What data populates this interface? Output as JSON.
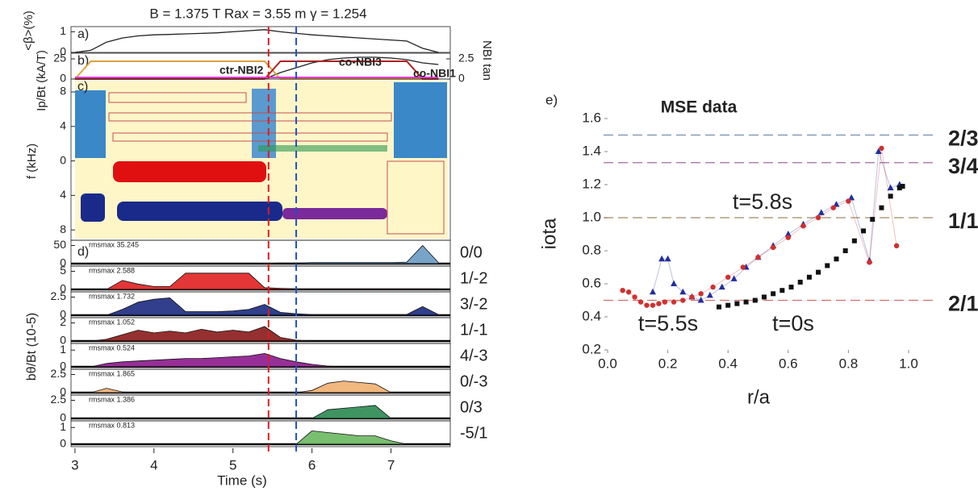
{
  "chart_data": [
    {
      "type": "timetrace",
      "title": "B = 1.375 T  Rax = 3.55 m  γ = 1.254",
      "xlabel": "Time (s)",
      "xlim": [
        2.95,
        7.75
      ],
      "xticks": [
        3,
        4,
        5,
        6,
        7
      ],
      "x": [
        3,
        3.2,
        3.4,
        3.6,
        3.8,
        4,
        4.2,
        4.4,
        4.6,
        4.8,
        5,
        5.2,
        5.4,
        5.6,
        5.8,
        6,
        6.2,
        6.4,
        6.6,
        6.8,
        7,
        7.2,
        7.4,
        7.6
      ],
      "markers": [
        {
          "value": 5.45,
          "color": "#d62020"
        },
        {
          "value": 5.8,
          "color": "#2050c0"
        }
      ],
      "panels": [
        {
          "label": "a)",
          "ylabel": "<β>(%)",
          "ylim": [
            0,
            1.25
          ],
          "yticks": [
            0,
            1
          ],
          "series": [
            {
              "color": "#222222",
              "values": [
                0,
                0.1,
                0.5,
                0.7,
                0.8,
                0.85,
                0.87,
                0.9,
                0.92,
                0.95,
                1,
                1.05,
                1.1,
                1,
                0.92,
                0.85,
                0.8,
                0.75,
                0.7,
                0.65,
                0.6,
                0.55,
                0.2,
                0
              ]
            }
          ]
        },
        {
          "label": "b)",
          "ylabel": "Ip/Bt (kA/T)",
          "ylim": [
            0,
            32
          ],
          "yticks": [
            0,
            25
          ],
          "y2label": "NBI tan",
          "y2lim": [
            0,
            3.2
          ],
          "y2ticks": [
            0,
            2.5
          ],
          "series": [
            {
              "color": "#222222",
              "values": [
                0,
                0,
                0,
                0,
                0,
                0,
                0,
                0,
                0,
                0,
                0,
                0,
                0,
                8,
                14,
                20,
                24,
                26,
                27,
                27,
                26,
                24,
                20,
                18
              ]
            },
            {
              "name": "ctr-NBI2",
              "color": "#e0a040",
              "axis": "y2",
              "values": [
                0,
                2.2,
                2.2,
                2.2,
                2.2,
                2.2,
                2.2,
                2.2,
                2.2,
                2.2,
                2.2,
                2.2,
                2.2,
                0,
                0,
                0,
                0,
                0,
                0,
                0,
                0,
                0,
                0,
                0
              ]
            },
            {
              "name": "co-NBI3",
              "color": "#b02020",
              "axis": "y2",
              "values": [
                0,
                0,
                0,
                0,
                0,
                0,
                0,
                0,
                0,
                0,
                0,
                0,
                0,
                2.2,
                2.2,
                2.2,
                2.2,
                2.2,
                2.2,
                2.2,
                2.2,
                2.2,
                0,
                0
              ]
            },
            {
              "name": "co-NBI1",
              "color": "#e040d0",
              "axis": "y2",
              "values": [
                0.2,
                0.2,
                0.2,
                0.2,
                0.2,
                0.2,
                0.2,
                0.2,
                0.2,
                0.2,
                0.2,
                0.2,
                0.2,
                0.2,
                0.2,
                0.2,
                0.2,
                0.2,
                0.2,
                0.2,
                0.2,
                0.2,
                0.2,
                0.2
              ]
            }
          ]
        },
        {
          "label": "c)",
          "ylabel": "f (kHz)",
          "ylim": [
            -9.2,
            9.5
          ],
          "yticks": [
            8,
            4,
            0,
            {
              "value": -4,
              "label": "4"
            },
            {
              "value": -8,
              "label": "8"
            }
          ]
        },
        {
          "label": "d)",
          "ylabel": "bθ/Bt (10-5)",
          "modes": [
            {
              "name": "0/0",
              "color": "#6a9ac4",
              "rmsmax": "rmsmax 35.245",
              "ylim": [
                0,
                60
              ],
              "yticks": [
                0,
                50
              ],
              "values": [
                0,
                0,
                0,
                0,
                0,
                0,
                0,
                0,
                0,
                0,
                0,
                0,
                1,
                2,
                2,
                3,
                3,
                3,
                3,
                3,
                3,
                4,
                50,
                3
              ]
            },
            {
              "name": "1/-2",
              "color": "#e02020",
              "rmsmax": "rmsmax 2.588",
              "ylim": [
                0,
                6
              ],
              "yticks": [
                0,
                5
              ],
              "values": [
                0,
                0,
                0,
                2.5,
                1.5,
                0.8,
                0.8,
                4.5,
                4.5,
                4.5,
                4.5,
                4.5,
                0.5,
                0.3,
                0.2,
                0.2,
                0.2,
                0.2,
                0.2,
                0.2,
                0.2,
                0.2,
                0.2,
                0.2
              ]
            },
            {
              "name": "3/-2",
              "color": "#1b2a80",
              "rmsmax": "rmsmax 1.732",
              "ylim": [
                0,
                3
              ],
              "yticks": [
                0,
                2.5
              ],
              "values": [
                0,
                0,
                0,
                0.8,
                1.8,
                2.2,
                2.4,
                0.5,
                0.5,
                0.5,
                0.6,
                0.8,
                1.5,
                0.4,
                0.2,
                0.1,
                0.1,
                0.1,
                0.1,
                0.1,
                0.1,
                0.1,
                1.2,
                0.1
              ]
            },
            {
              "name": "1/-1",
              "color": "#8b1a1a",
              "rmsmax": "rmsmax 1.052",
              "ylim": [
                0,
                2.4
              ],
              "yticks": [
                0,
                2
              ],
              "values": [
                0,
                0,
                0.2,
                0.7,
                1.2,
                0.9,
                1.1,
                0.9,
                1.3,
                1,
                1.2,
                1,
                1.6,
                0.4,
                0.1,
                0,
                0,
                0,
                0,
                0,
                0,
                0,
                0,
                0
              ]
            },
            {
              "name": "4/-3",
              "color": "#8b1a8b",
              "rmsmax": "rmsmax 0.524",
              "ylim": [
                0,
                1.3
              ],
              "yticks": [
                0,
                1
              ],
              "values": [
                0,
                0,
                0.2,
                0.3,
                0.35,
                0.4,
                0.45,
                0.5,
                0.5,
                0.55,
                0.6,
                0.65,
                0.8,
                0.5,
                0.3,
                0.15,
                0.05,
                0,
                0,
                0,
                0,
                0,
                0,
                0
              ]
            },
            {
              "name": "0/-3",
              "color": "#f0b070",
              "rmsmax": "rmsmax 1.865",
              "ylim": [
                0,
                3
              ],
              "yticks": [
                0,
                2.5
              ],
              "values": [
                0,
                0,
                0.6,
                0.1,
                0,
                0,
                0,
                0,
                0,
                0,
                0,
                0,
                0,
                0,
                0,
                0.3,
                1.3,
                1.6,
                1.4,
                1.2,
                0,
                0,
                0,
                0
              ]
            },
            {
              "name": "0/3",
              "color": "#2a8a50",
              "rmsmax": "rmsmax 1.386",
              "ylim": [
                0,
                3
              ],
              "yticks": [
                0,
                2.5
              ],
              "values": [
                0,
                0,
                0,
                0,
                0,
                0,
                0,
                0,
                0,
                0,
                0,
                0,
                0,
                0,
                0,
                0,
                1.2,
                1.4,
                1.6,
                1.8,
                0,
                0,
                0,
                0
              ]
            },
            {
              "name": "-5/1",
              "color": "#6ab860",
              "rmsmax": "rmsmax 0.813",
              "ylim": [
                0,
                1.3
              ],
              "yticks": [
                0,
                1
              ],
              "values": [
                0,
                0,
                0,
                0,
                0,
                0,
                0,
                0,
                0,
                0,
                0,
                0,
                0,
                0,
                0,
                0.8,
                0.7,
                0.6,
                0.5,
                0.5,
                0.2,
                0,
                0,
                0
              ]
            }
          ]
        }
      ]
    },
    {
      "type": "scatter",
      "label": "e)",
      "title": "MSE data",
      "xlabel": "r/a",
      "ylabel": "iota",
      "xlim": [
        0,
        1
      ],
      "ylim": [
        0.2,
        1.6
      ],
      "xticks": [
        {
          "value": 0,
          "label": "0.0"
        },
        0.2,
        0.4,
        0.6,
        0.8,
        {
          "value": 1,
          "label": "1.0"
        }
      ],
      "yticks": [
        0.2,
        0.4,
        0.6,
        0.8,
        {
          "value": 1,
          "label": "1.0"
        },
        1.2,
        1.4,
        1.6
      ],
      "reference_lines": [
        {
          "value": 1.5,
          "label": "2/3",
          "color": "#3d5f8a"
        },
        {
          "value": 1.333,
          "label": "3/4",
          "color": "#7a2a7a"
        },
        {
          "value": 1,
          "label": "1/1",
          "color": "#7a5a20"
        },
        {
          "value": 0.5,
          "label": "2/1",
          "color": "#c03030"
        }
      ],
      "series": [
        {
          "name": "t=5.8s",
          "color": "#2030a0",
          "marker": "triangle",
          "x": [
            0.15,
            0.18,
            0.2,
            0.22,
            0.25,
            0.28,
            0.31,
            0.34,
            0.38,
            0.42,
            0.46,
            0.5,
            0.55,
            0.6,
            0.65,
            0.71,
            0.76,
            0.81,
            0.87,
            0.9,
            0.94,
            0.97
          ],
          "y": [
            0.55,
            0.75,
            0.75,
            0.6,
            0.55,
            0.52,
            0.5,
            0.53,
            0.58,
            0.63,
            0.7,
            0.76,
            0.83,
            0.9,
            0.96,
            1.03,
            1.08,
            1.12,
            0.74,
            1.4,
            1.18,
            1.2
          ]
        },
        {
          "name": "t=5.5s",
          "color": "#d03030",
          "marker": "circle",
          "x": [
            0.05,
            0.07,
            0.09,
            0.11,
            0.13,
            0.15,
            0.17,
            0.19,
            0.22,
            0.25,
            0.28,
            0.31,
            0.35,
            0.4,
            0.45,
            0.5,
            0.55,
            0.6,
            0.65,
            0.7,
            0.75,
            0.8,
            0.87,
            0.91,
            0.96
          ],
          "y": [
            0.56,
            0.55,
            0.52,
            0.49,
            0.47,
            0.47,
            0.48,
            0.49,
            0.49,
            0.5,
            0.52,
            0.54,
            0.58,
            0.64,
            0.7,
            0.76,
            0.82,
            0.88,
            0.95,
            1,
            1.06,
            1.1,
            0.73,
            1.42,
            0.83
          ]
        },
        {
          "name": "t=0s",
          "color": "#111111",
          "marker": "square",
          "x": [
            0.37,
            0.4,
            0.43,
            0.46,
            0.49,
            0.52,
            0.55,
            0.58,
            0.61,
            0.64,
            0.67,
            0.7,
            0.73,
            0.76,
            0.79,
            0.82,
            0.85,
            0.88,
            0.91,
            0.94,
            0.97,
            0.98
          ],
          "y": [
            0.46,
            0.47,
            0.48,
            0.49,
            0.5,
            0.52,
            0.54,
            0.56,
            0.58,
            0.61,
            0.64,
            0.67,
            0.71,
            0.75,
            0.8,
            0.86,
            0.92,
            0.99,
            1.06,
            1.13,
            1.18,
            1.19
          ]
        }
      ]
    }
  ]
}
